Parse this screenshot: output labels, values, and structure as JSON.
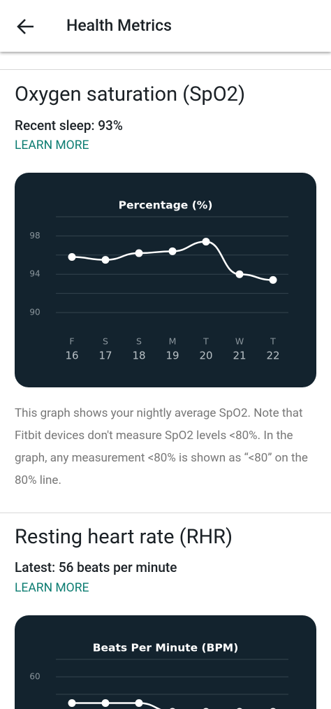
{
  "header": {
    "title": "Health Metrics"
  },
  "spo2": {
    "title": "Oxygen saturation (SpO2)",
    "summary": "Recent sleep: 93%",
    "learn_more": "LEARN MORE",
    "chart": {
      "type": "line",
      "title": "Percentage (%)",
      "days": [
        "F",
        "S",
        "S",
        "M",
        "T",
        "W",
        "T"
      ],
      "dates": [
        "16",
        "17",
        "18",
        "19",
        "20",
        "21",
        "22"
      ],
      "values": [
        95.8,
        95.5,
        96.2,
        96.4,
        97.4,
        94.0,
        93.4
      ],
      "color": "#ffffff",
      "ylim": [
        90,
        100
      ],
      "yticks": [
        90,
        94,
        98
      ],
      "grid_values": [
        90,
        92,
        94,
        96,
        98,
        100
      ]
    },
    "note": "This graph shows your nightly average SpO2. Note that Fitbit devices don't measure SpO2 levels <80%. In the graph, any measurement <80% is shown as “<80” on the 80% line."
  },
  "rhr": {
    "title": "Resting heart rate (RHR)",
    "summary": "Latest: 56 beats per minute",
    "learn_more": "LEARN MORE",
    "chart": {
      "type": "line",
      "title": "Beats Per Minute (BPM)",
      "values": [
        57,
        57,
        57,
        56,
        56,
        56,
        56
      ],
      "color": "#ffffff",
      "ylim": [
        54,
        62
      ],
      "yticks": [
        60
      ],
      "grid_values": [
        58,
        60,
        62
      ]
    }
  }
}
